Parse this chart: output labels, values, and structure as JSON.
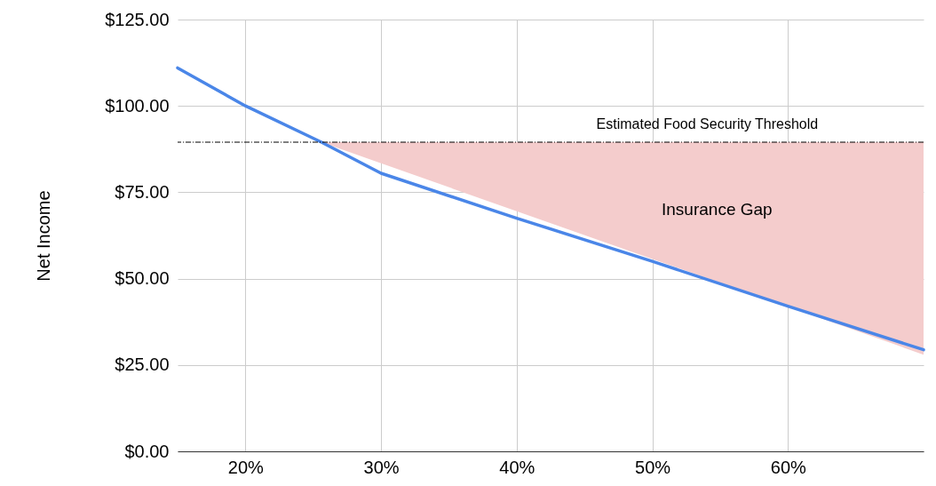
{
  "chart_data": {
    "type": "line",
    "ylabel": "Net Income",
    "x": [
      15,
      20,
      25.6,
      30,
      40,
      50,
      60,
      70
    ],
    "series": [
      {
        "color": "#4a86e8",
        "values": [
          111,
          100,
          89.5,
          80.5,
          67.5,
          55,
          42,
          29.4
        ],
        "lower": [
          null,
          null,
          89.5,
          83.4,
          69.5,
          55.7,
          41.9,
          28
        ],
        "upper": [
          null,
          null,
          89.5,
          89.5,
          89.5,
          89.5,
          89.5,
          89.5
        ]
      }
    ],
    "xlim": [
      15,
      70
    ],
    "xticks": [
      {
        "value": 20,
        "label": "20%"
      },
      {
        "value": 30,
        "label": "30%"
      },
      {
        "value": 40,
        "label": "40%"
      },
      {
        "value": 50,
        "label": "50%"
      },
      {
        "value": 60,
        "label": "60%"
      }
    ],
    "ylim": [
      0,
      125
    ],
    "yticks": [
      {
        "value": 0,
        "label": "$0.00"
      },
      {
        "value": 25,
        "label": "$25.00"
      },
      {
        "value": 50,
        "label": "$50.00"
      },
      {
        "value": 75,
        "label": "$75.00"
      },
      {
        "value": 100,
        "label": "$100.00"
      },
      {
        "value": 125,
        "label": "$125.00"
      }
    ],
    "ref_lines": [
      {
        "axis": "y",
        "value": 89.5,
        "label": "Estimated Food Security Threshold",
        "color": "#000000",
        "line_style": "dashed"
      }
    ],
    "annotations": [
      "Insurance Gap"
    ],
    "grid": true
  }
}
